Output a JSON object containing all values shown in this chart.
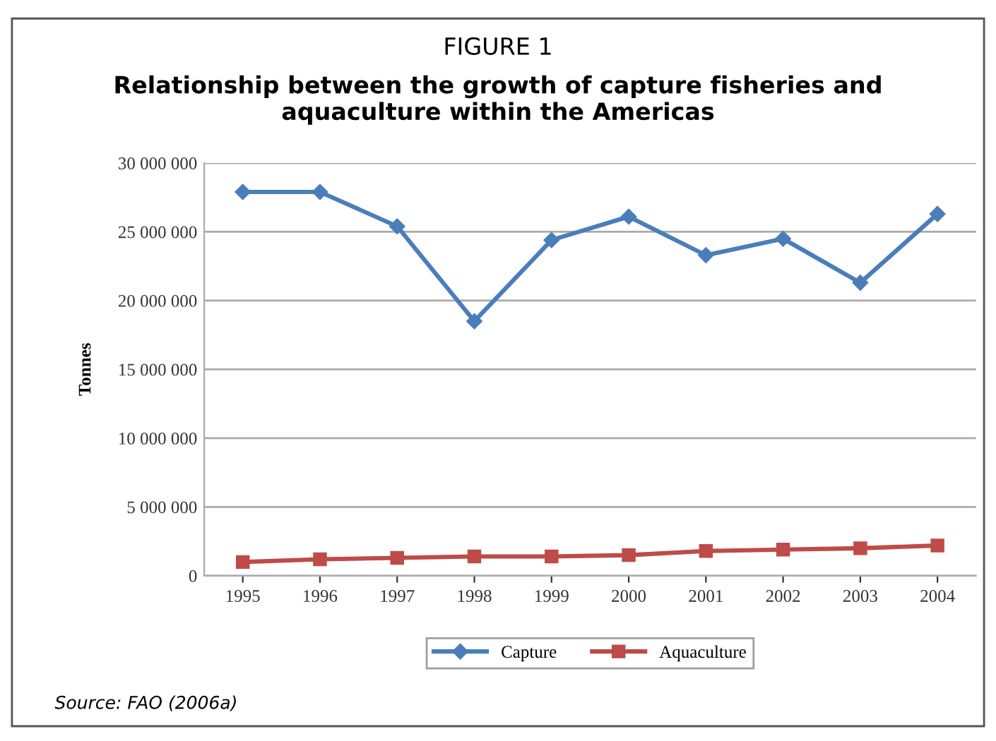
{
  "chart_data": {
    "type": "line",
    "subtitle": "FIGURE 1",
    "title": "Relationship between the growth of capture fisheries and aquaculture within the Americas",
    "ylabel": "Tonnes",
    "categories": [
      "1995",
      "1996",
      "1997",
      "1998",
      "1999",
      "2000",
      "2001",
      "2002",
      "2003",
      "2004"
    ],
    "series": [
      {
        "name": "Capture",
        "color": "#4a7ebb",
        "marker": "diamond",
        "values": [
          27900000,
          27900000,
          25400000,
          18500000,
          24400000,
          26100000,
          23300000,
          24500000,
          21300000,
          26300000
        ]
      },
      {
        "name": "Aquaculture",
        "color": "#be4b48",
        "marker": "square",
        "values": [
          1000000,
          1200000,
          1300000,
          1400000,
          1400000,
          1500000,
          1800000,
          1900000,
          2000000,
          2200000
        ]
      }
    ],
    "ylim": [
      0,
      30000000
    ],
    "yticks": [
      0,
      {
        "value": 5000000,
        "label": "5 000 000"
      },
      {
        "value": 10000000,
        "label": "10 000 000"
      },
      {
        "value": 15000000,
        "label": "15 000 000"
      },
      {
        "value": 20000000,
        "label": "20 000 000"
      },
      {
        "value": 25000000,
        "label": "25 000 000"
      },
      {
        "value": 30000000,
        "label": "30 000 000"
      }
    ],
    "grid": "y",
    "legend": "bottom",
    "line_style": "solid",
    "annotations": [
      "Source: FAO (2006a)"
    ]
  }
}
